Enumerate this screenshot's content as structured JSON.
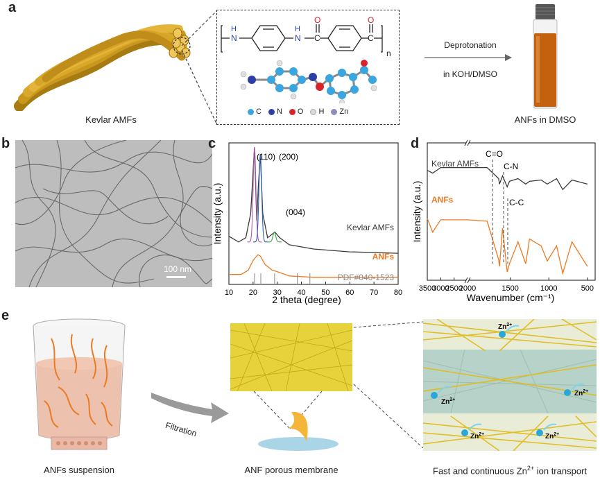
{
  "panels": {
    "a": {
      "letter": "a",
      "kevlar_caption": "Kevlar AMFs",
      "formula": {
        "h1": "H",
        "n1": "N",
        "h2": "H",
        "n2": "N",
        "c1": "C",
        "o1": "O",
        "c2": "C",
        "o2": "O",
        "sub": "n"
      },
      "legend": [
        {
          "label": "C",
          "color": "#3aa6e0"
        },
        {
          "label": "N",
          "color": "#2c3fa6"
        },
        {
          "label": "O",
          "color": "#d8232a"
        },
        {
          "label": "H",
          "color": "#d9d9d9"
        },
        {
          "label": "Zn",
          "color": "#8a8fbf"
        }
      ],
      "arrow_top": "Deprotonation",
      "arrow_bottom": "in KOH/DMSO",
      "vial_caption": "ANFs in DMSO"
    },
    "b": {
      "letter": "b",
      "scalebar": "100 nm"
    },
    "c": {
      "letter": "c",
      "peaks": {
        "p110": "(110)",
        "p200": "(200)",
        "p004": "(004)"
      },
      "series_top": "Kevlar AMFs",
      "series_bottom": "ANFs",
      "reference": "PDF#040-1523"
    },
    "d": {
      "letter": "d",
      "series_top": "Kevlar AMFs",
      "series_bottom": "ANFs",
      "bands": {
        "co": "C=O",
        "cn": "C-N",
        "cc": "C-C"
      }
    },
    "e": {
      "letter": "e",
      "beaker_caption": "ANFs suspension",
      "arrow_label": "Filtration",
      "membrane_caption": "ANF porous membrane",
      "transport_caption": "Fast and continuous Zn",
      "transport_sup": "2+",
      "transport_caption_end": " ion transport",
      "ion_label": "Zn",
      "ion_sup": "2+"
    }
  },
  "colors": {
    "kevlar": "#3a3a3a",
    "anf": "#ec7a23",
    "fiber": "#d9a82a",
    "membrane": "#e6d23a"
  },
  "chart_data": [
    {
      "type": "line",
      "xlabel": "2 theta (degree)",
      "ylabel": "Intensity (a.u.)",
      "xlim": [
        10,
        80
      ],
      "xticks": [
        "10",
        "20",
        "30",
        "40",
        "50",
        "60",
        "70",
        "80"
      ],
      "series": [
        {
          "name": "Kevlar AMFs",
          "x": [
            10,
            14,
            17,
            19,
            20.6,
            21.5,
            22.2,
            23,
            24,
            26,
            29,
            31,
            35,
            45,
            60,
            80
          ],
          "y": [
            0.34,
            0.3,
            0.33,
            0.5,
            0.97,
            0.45,
            0.7,
            0.92,
            0.5,
            0.33,
            0.37,
            0.33,
            0.28,
            0.25,
            0.23,
            0.22
          ]
        },
        {
          "name": "ANFs",
          "x": [
            10,
            15,
            18,
            20,
            22,
            23,
            25,
            28,
            30,
            35,
            45,
            60,
            80
          ],
          "y": [
            0.07,
            0.07,
            0.1,
            0.17,
            0.21,
            0.2,
            0.14,
            0.1,
            0.09,
            0.06,
            0.05,
            0.05,
            0.05
          ]
        }
      ],
      "reference_lines": [
        20.6,
        23.2,
        28.9,
        38.3,
        43.5
      ]
    },
    {
      "type": "line",
      "xlabel": "Wavenumber (cm⁻¹)",
      "ylabel": "Intensity (a.u.)",
      "x_reversed": true,
      "xticks": [
        "3500",
        "3000",
        "2500",
        "2000",
        "1500",
        "1000",
        "500"
      ],
      "axis_break": true,
      "series": [
        {
          "name": "Kevlar AMFs",
          "x": [
            3500,
            3300,
            3000,
            2600,
            2000,
            1800,
            1650,
            1640,
            1600,
            1540,
            1510,
            1400,
            1300,
            1250,
            1100,
            1020,
            900,
            820,
            700,
            500
          ],
          "y": [
            0.8,
            0.78,
            0.82,
            0.82,
            0.82,
            0.82,
            0.74,
            0.7,
            0.76,
            0.68,
            0.72,
            0.74,
            0.7,
            0.72,
            0.73,
            0.7,
            0.74,
            0.66,
            0.73,
            0.7
          ]
        },
        {
          "name": "ANFs",
          "x": [
            3500,
            3300,
            3000,
            2600,
            2000,
            1800,
            1650,
            1640,
            1600,
            1540,
            1510,
            1400,
            1300,
            1250,
            1100,
            1020,
            900,
            820,
            700,
            500
          ],
          "y": [
            0.45,
            0.35,
            0.44,
            0.44,
            0.44,
            0.43,
            0.15,
            0.1,
            0.38,
            0.06,
            0.12,
            0.28,
            0.12,
            0.3,
            0.25,
            0.14,
            0.25,
            0.05,
            0.28,
            0.1
          ]
        }
      ]
    }
  ]
}
